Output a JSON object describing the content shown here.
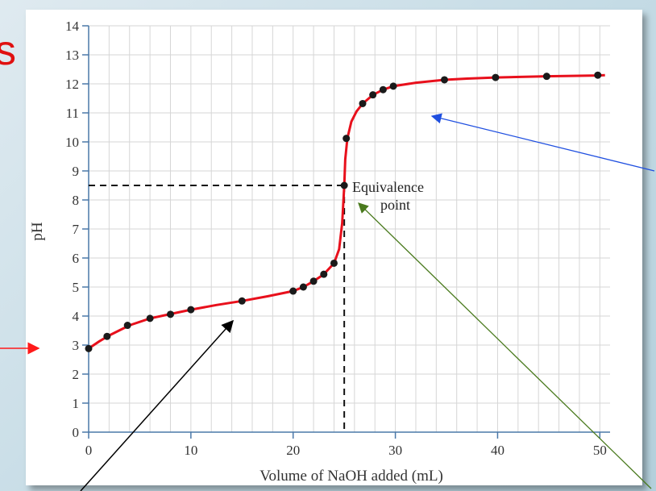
{
  "chart_data": {
    "type": "scatter",
    "title": "",
    "xlabel": "Volume of NaOH added (mL)",
    "ylabel": "pH",
    "xlim": [
      0,
      51
    ],
    "ylim": [
      0,
      14
    ],
    "xticks": [
      0,
      10,
      20,
      30,
      40,
      50
    ],
    "yticks": [
      0,
      1,
      2,
      3,
      4,
      5,
      6,
      7,
      8,
      9,
      10,
      11,
      12,
      13,
      14
    ],
    "grid": true,
    "series": [
      {
        "points": [
          [
            0,
            2.88
          ],
          [
            1.8,
            3.3
          ],
          [
            3.8,
            3.68
          ],
          [
            6,
            3.92
          ],
          [
            8,
            4.06
          ],
          [
            10,
            4.22
          ],
          [
            15,
            4.52
          ],
          [
            20,
            4.86
          ],
          [
            21,
            5.0
          ],
          [
            22,
            5.2
          ],
          [
            23,
            5.44
          ],
          [
            24,
            5.82
          ],
          [
            25,
            8.5
          ],
          [
            25.2,
            10.12
          ],
          [
            26.8,
            11.32
          ],
          [
            27.8,
            11.62
          ],
          [
            28.8,
            11.8
          ],
          [
            29.8,
            11.92
          ],
          [
            34.8,
            12.14
          ],
          [
            39.8,
            12.22
          ],
          [
            44.8,
            12.26
          ],
          [
            49.8,
            12.3
          ]
        ],
        "curve": [
          [
            0,
            2.88
          ],
          [
            1,
            3.12
          ],
          [
            2,
            3.33
          ],
          [
            4,
            3.68
          ],
          [
            6,
            3.92
          ],
          [
            8,
            4.07
          ],
          [
            10,
            4.22
          ],
          [
            12.5,
            4.38
          ],
          [
            15,
            4.52
          ],
          [
            17.5,
            4.68
          ],
          [
            20,
            4.86
          ],
          [
            21,
            5.0
          ],
          [
            22,
            5.2
          ],
          [
            23,
            5.44
          ],
          [
            24,
            5.82
          ],
          [
            24.5,
            6.3
          ],
          [
            24.8,
            7.2
          ],
          [
            25,
            8.5
          ],
          [
            25.1,
            9.4
          ],
          [
            25.3,
            10.12
          ],
          [
            25.7,
            10.7
          ],
          [
            26.2,
            11.05
          ],
          [
            26.8,
            11.32
          ],
          [
            27.8,
            11.62
          ],
          [
            28.8,
            11.8
          ],
          [
            29.8,
            11.92
          ],
          [
            32,
            12.04
          ],
          [
            34.8,
            12.14
          ],
          [
            37,
            12.18
          ],
          [
            39.8,
            12.22
          ],
          [
            44.8,
            12.26
          ],
          [
            49.8,
            12.29
          ],
          [
            50.5,
            12.3
          ]
        ]
      }
    ],
    "equivalence_point": {
      "x": 25,
      "y": 8.5,
      "label": [
        "Equivalence",
        "point"
      ]
    },
    "colors": {
      "curve": "#e8101c",
      "points": "#1a1a1a",
      "grid": "#d6d6d6",
      "axis": "#4a78a8"
    }
  },
  "slide": {
    "title_fragment": "s",
    "arrow_colors": {
      "red": "#ff1a1a",
      "blue": "#1f4fe0",
      "black": "#000000",
      "green": "#4a7a1e"
    }
  }
}
